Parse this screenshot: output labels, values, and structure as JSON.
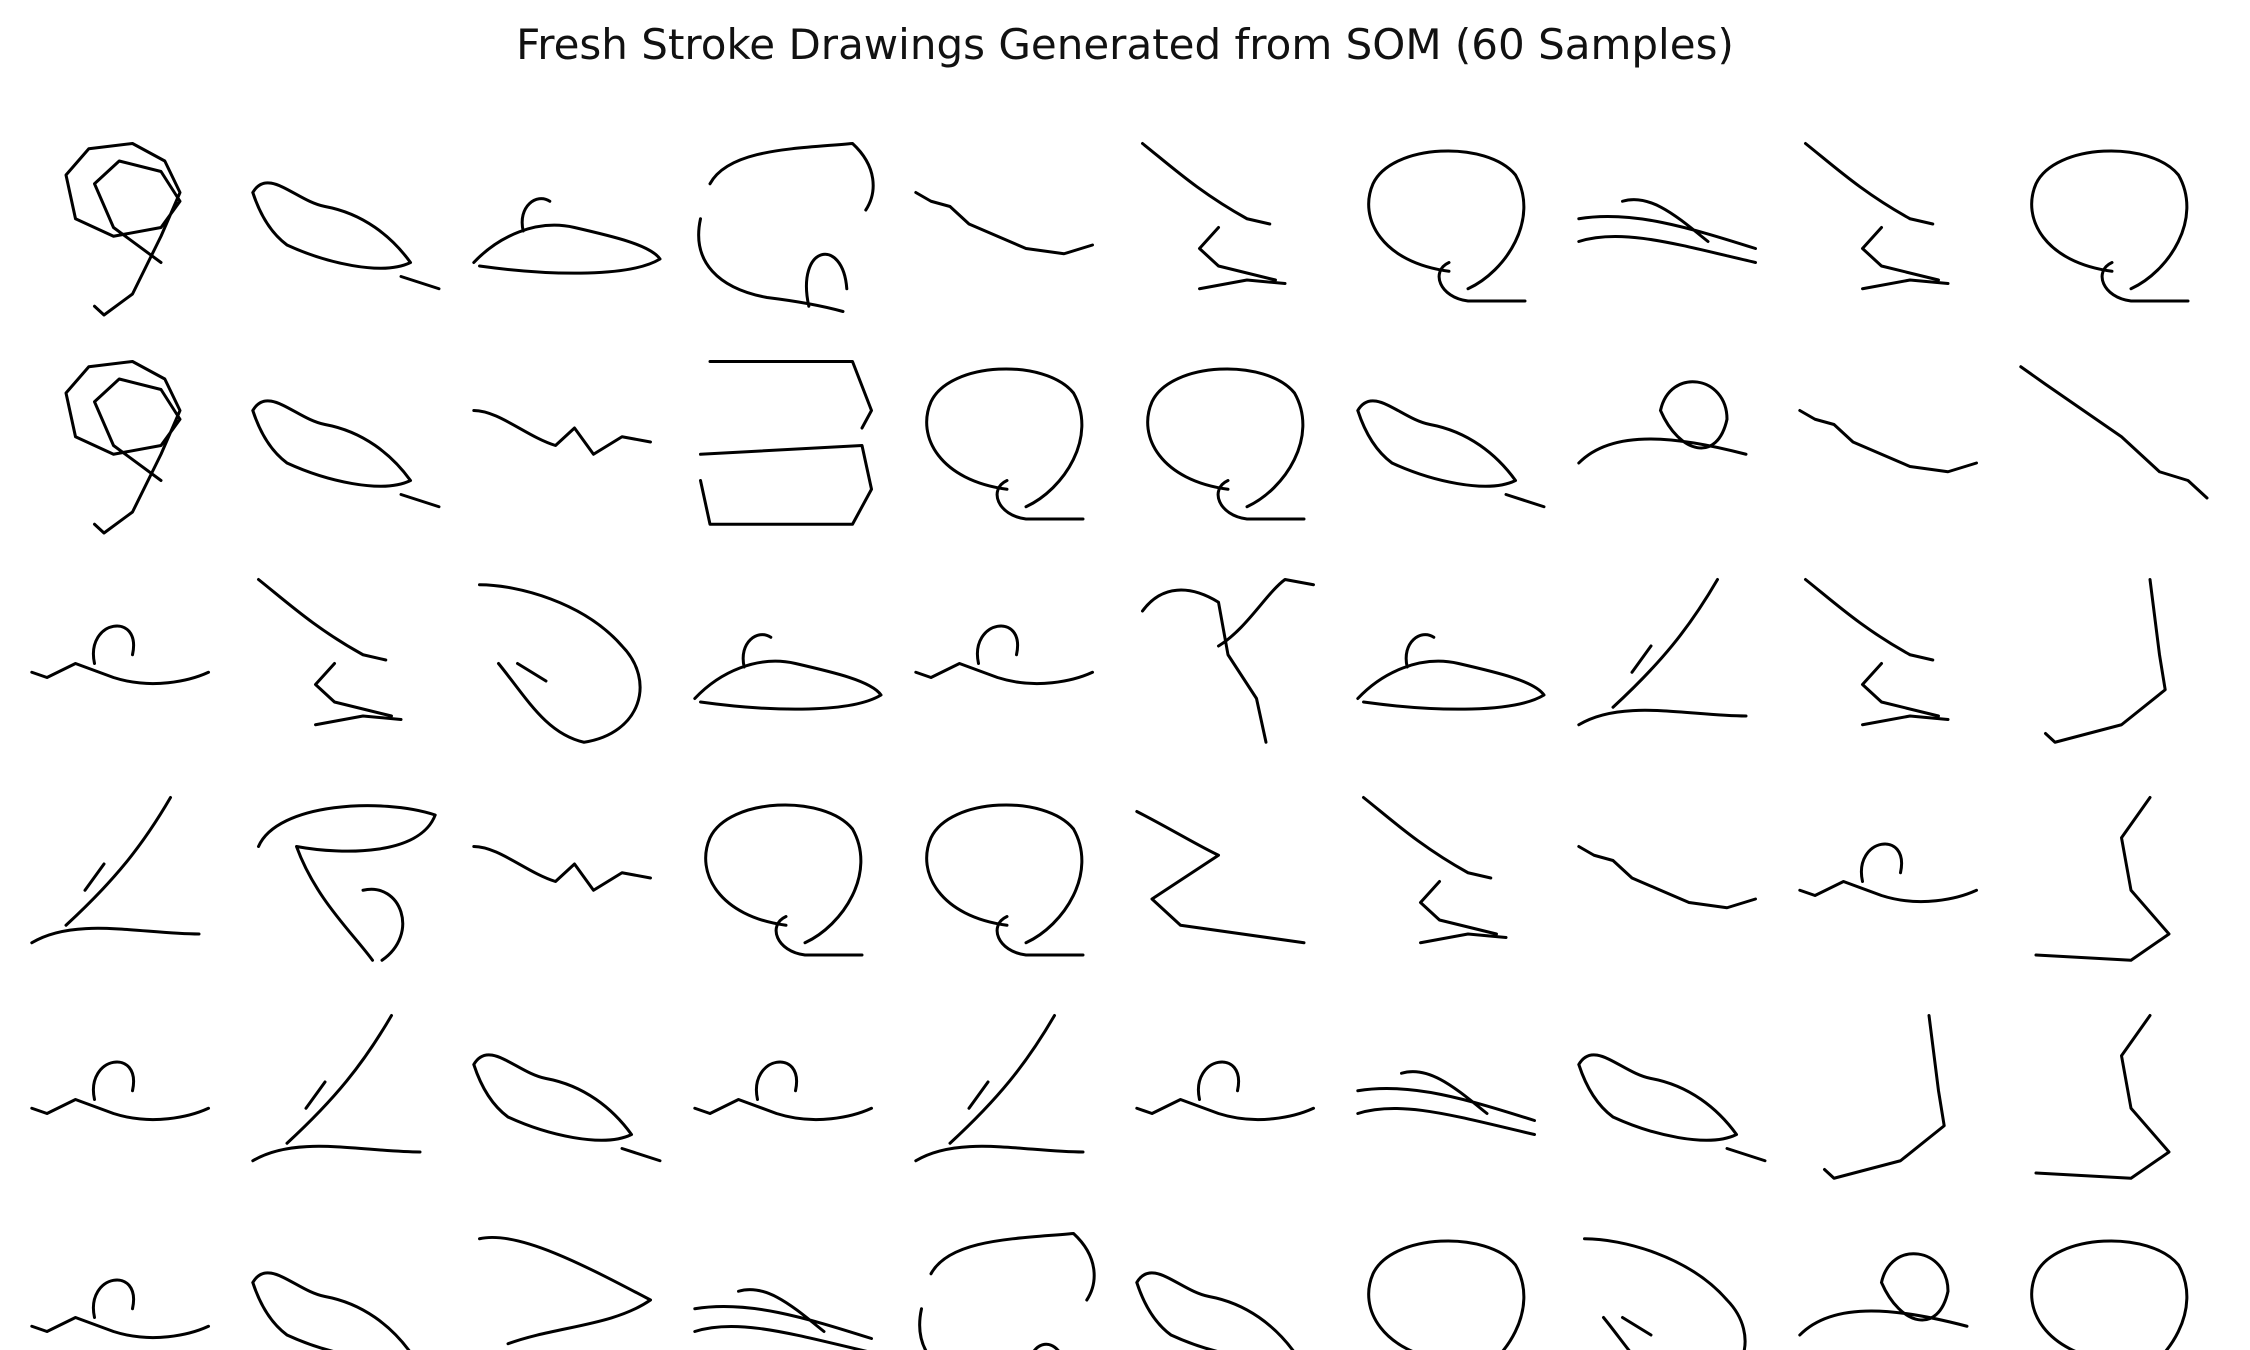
{
  "figure": {
    "title": "Fresh Stroke Drawings Generated from SOM (60 Samples)",
    "rows": 6,
    "cols": 10,
    "stroke_color": "#000000",
    "background": "#ffffff"
  },
  "drawings": [
    {
      "kind": "curl9"
    },
    {
      "kind": "flatblob"
    },
    {
      "kind": "flathook"
    },
    {
      "kind": "bigblob"
    },
    {
      "kind": "line"
    },
    {
      "kind": "nose"
    },
    {
      "kind": "circle"
    },
    {
      "kind": "flatcross"
    },
    {
      "kind": "nose"
    },
    {
      "kind": "circle"
    },
    {
      "kind": "curl9"
    },
    {
      "kind": "flatblob"
    },
    {
      "kind": "wave"
    },
    {
      "kind": "square"
    },
    {
      "kind": "circle"
    },
    {
      "kind": "circle"
    },
    {
      "kind": "flatblob"
    },
    {
      "kind": "loopcross"
    },
    {
      "kind": "line"
    },
    {
      "kind": "diag"
    },
    {
      "kind": "loopline"
    },
    {
      "kind": "nose"
    },
    {
      "kind": "diagblob"
    },
    {
      "kind": "flathook"
    },
    {
      "kind": "loopline"
    },
    {
      "kind": "y"
    },
    {
      "kind": "flathook"
    },
    {
      "kind": "cross"
    },
    {
      "kind": "nose"
    },
    {
      "kind": "vertical"
    },
    {
      "kind": "cross"
    },
    {
      "kind": "blobloop"
    },
    {
      "kind": "wave"
    },
    {
      "kind": "circle"
    },
    {
      "kind": "circle"
    },
    {
      "kind": "z"
    },
    {
      "kind": "nose"
    },
    {
      "kind": "line"
    },
    {
      "kind": "loopline"
    },
    {
      "kind": "s"
    },
    {
      "kind": "loopline"
    },
    {
      "kind": "cross"
    },
    {
      "kind": "flatblob"
    },
    {
      "kind": "loopline"
    },
    {
      "kind": "cross"
    },
    {
      "kind": "loopline"
    },
    {
      "kind": "flatcross"
    },
    {
      "kind": "flatblob"
    },
    {
      "kind": "vertical"
    },
    {
      "kind": "s"
    },
    {
      "kind": "loopline"
    },
    {
      "kind": "flatblob"
    },
    {
      "kind": "hookblob"
    },
    {
      "kind": "flatcross"
    },
    {
      "kind": "bigblob"
    },
    {
      "kind": "flatblob"
    },
    {
      "kind": "circle"
    },
    {
      "kind": "diagblob"
    },
    {
      "kind": "loopcross"
    },
    {
      "kind": "circle"
    }
  ]
}
